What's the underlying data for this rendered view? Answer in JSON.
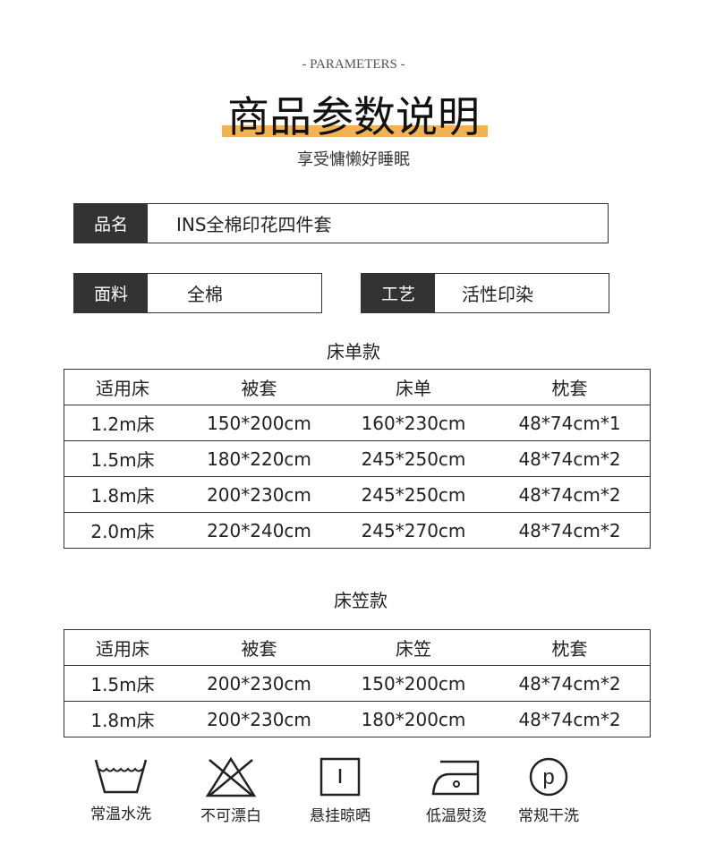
{
  "header": {
    "eyebrow": "- PARAMETERS -",
    "title": "商品参数说明",
    "slogan": "享受慵懒好睡眠",
    "accent": "#f4b352"
  },
  "specs": {
    "name": {
      "label": "品名",
      "value": "INS全棉印花四件套"
    },
    "fabric": {
      "label": "面料",
      "value": "全棉"
    },
    "craft": {
      "label": "工艺",
      "value": "活性印染"
    }
  },
  "sheet_table": {
    "caption": "床单款",
    "headers": [
      "适用床",
      "被套",
      "床单",
      "枕套"
    ],
    "rows": [
      [
        "1.2m床",
        "150*200cm",
        "160*230cm",
        "48*74cm*1"
      ],
      [
        "1.5m床",
        "180*220cm",
        "245*250cm",
        "48*74cm*2"
      ],
      [
        "1.8m床",
        "200*230cm",
        "245*250cm",
        "48*74cm*2"
      ],
      [
        "2.0m床",
        "220*240cm",
        "245*270cm",
        "48*74cm*2"
      ]
    ]
  },
  "fitted_table": {
    "caption": "床笠款",
    "headers": [
      "适用床",
      "被套",
      "床笠",
      "枕套"
    ],
    "rows": [
      [
        "1.5m床",
        "200*230cm",
        "150*200cm",
        "48*74cm*2"
      ],
      [
        "1.8m床",
        "200*230cm",
        "180*200cm",
        "48*74cm*2"
      ]
    ]
  },
  "care": [
    {
      "icon": "wash-normal-temp-icon",
      "label": "常温水洗"
    },
    {
      "icon": "no-bleach-icon",
      "label": "不可漂白"
    },
    {
      "icon": "hang-dry-icon",
      "label": "悬挂晾晒"
    },
    {
      "icon": "low-iron-icon",
      "label": "低温熨烫"
    },
    {
      "icon": "dry-clean-icon",
      "label": "常规干洗"
    }
  ]
}
